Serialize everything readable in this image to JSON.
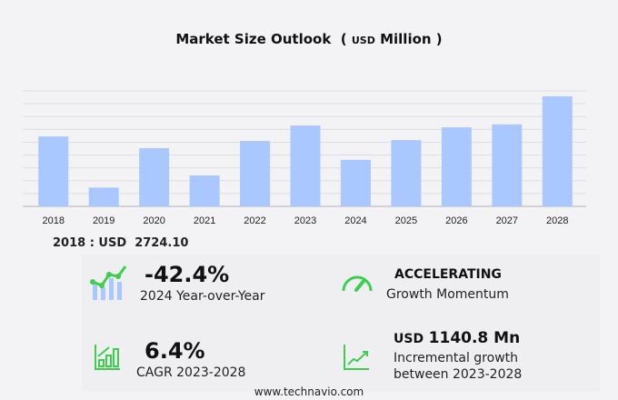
{
  "chart_data": {
    "type": "bar",
    "title": "Market Size Outlook",
    "unit_prefix": "USD",
    "unit": "Million",
    "categories": [
      "2018",
      "2019",
      "2020",
      "2021",
      "2022",
      "2023",
      "2024",
      "2025",
      "2026",
      "2027",
      "2028"
    ],
    "values": [
      2724.1,
      733,
      2266,
      1204,
      2549,
      3150,
      1814,
      2584,
      3080,
      3197,
      4290.8
    ],
    "ylim": [
      0,
      4500
    ],
    "grid": true,
    "bar_color": "#a8c8ff"
  },
  "base": {
    "label": "2018 : USD",
    "value": "2724.10"
  },
  "kpis": {
    "yoy": {
      "value": "-42.4%",
      "label": "2024 Year-over-Year"
    },
    "momentum": {
      "value": "ACCELERATING",
      "label": "Growth Momentum"
    },
    "cagr": {
      "value": "6.4%",
      "label": "CAGR 2023-2028"
    },
    "incremental": {
      "prefix": "USD",
      "value": "1140.8 Mn",
      "label1": "Incremental growth",
      "label2": "between 2023-2028"
    }
  },
  "footer": "www.technavio.com",
  "colors": {
    "green": "#3ccf4e",
    "bar": "#a8c8ff"
  }
}
